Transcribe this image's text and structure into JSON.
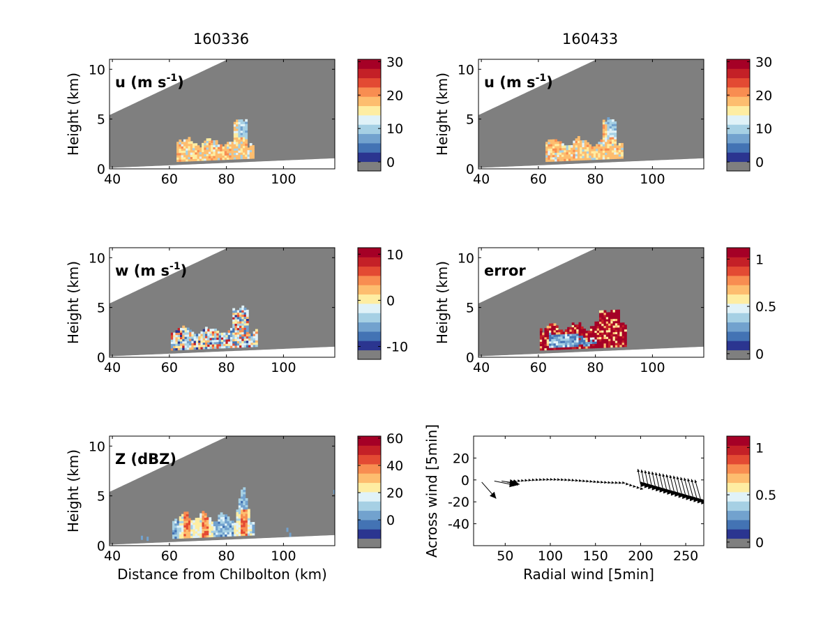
{
  "figure": {
    "col_titles": [
      "160336",
      "160433"
    ]
  },
  "colors": {
    "background_gray": "#7f7f7f",
    "palette": [
      "#2b3590",
      "#4373b4",
      "#72a2ce",
      "#a6d0e4",
      "#e0f2f8",
      "#feeda2",
      "#fdbd6f",
      "#f88d51",
      "#e34a33",
      "#c42027",
      "#a50026"
    ]
  },
  "chart_data": [
    {
      "type": "heatmap",
      "id": "u1",
      "label_parts": [
        "u (m s",
        "-1",
        ")"
      ],
      "ylabel": "Height (km)",
      "xlabel": "",
      "xlim": [
        39,
        118
      ],
      "ylim": [
        0,
        11
      ],
      "xticks": [
        40,
        60,
        80,
        100
      ],
      "yticks": [
        0,
        5,
        10
      ],
      "field": "u",
      "colorbar": {
        "ticks": [
          0,
          10,
          20,
          30
        ],
        "range": [
          -2.7,
          30.7
        ]
      }
    },
    {
      "type": "heatmap",
      "id": "u2",
      "label_parts": [
        "u (m s",
        "-1",
        ")"
      ],
      "ylabel": "Height (km)",
      "xlabel": "",
      "xlim": [
        39,
        118
      ],
      "ylim": [
        0,
        11
      ],
      "xticks": [
        40,
        60,
        80,
        100
      ],
      "yticks": [
        0,
        5,
        10
      ],
      "field": "u",
      "colorbar": {
        "ticks": [
          0,
          10,
          20,
          30
        ],
        "range": [
          -2.7,
          30.7
        ]
      }
    },
    {
      "type": "heatmap",
      "id": "w",
      "label_parts": [
        "w (m s",
        "-1",
        ")"
      ],
      "ylabel": "Height (km)",
      "xlabel": "",
      "xlim": [
        39,
        118
      ],
      "ylim": [
        0,
        11
      ],
      "xticks": [
        40,
        60,
        80,
        100
      ],
      "yticks": [
        0,
        5,
        10
      ],
      "field": "w",
      "colorbar": {
        "ticks": [
          -10,
          0,
          10
        ],
        "range": [
          -12.8,
          11.4
        ]
      }
    },
    {
      "type": "heatmap",
      "id": "err",
      "label_parts": [
        "error"
      ],
      "ylabel": "Height (km)",
      "xlabel": "",
      "xlim": [
        39,
        118
      ],
      "ylim": [
        0,
        11
      ],
      "xticks": [
        40,
        60,
        80,
        100
      ],
      "yticks": [
        0,
        5,
        10
      ],
      "field": "error",
      "colorbar": {
        "ticks": [
          0,
          0.5,
          1
        ],
        "range": [
          -0.06,
          1.12
        ]
      }
    },
    {
      "type": "heatmap",
      "id": "z",
      "label_parts": [
        "Z (dBZ)"
      ],
      "ylabel": "Height (km)",
      "xlabel": "Distance from Chilbolton (km)",
      "xlim": [
        39,
        118
      ],
      "ylim": [
        0,
        11
      ],
      "xticks": [
        40,
        60,
        80,
        100
      ],
      "yticks": [
        0,
        5,
        10
      ],
      "field": "Z",
      "colorbar": {
        "ticks": [
          0,
          20,
          40,
          60
        ],
        "range": [
          -20.5,
          61.5
        ]
      }
    },
    {
      "type": "quiver",
      "id": "quiver",
      "label_parts": [],
      "ylabel": "Across wind [5min]",
      "xlabel": "Radial wind [5min]",
      "xlim": [
        15,
        270
      ],
      "ylim": [
        -60,
        40
      ],
      "xticks": [
        50,
        100,
        150,
        200,
        250
      ],
      "yticks": [
        -40,
        -20,
        0,
        20
      ],
      "vectors": [
        {
          "x": 24,
          "y": -2,
          "u": 16,
          "v": -15
        },
        {
          "x": 38,
          "y": -1,
          "u": 24,
          "v": -4
        },
        {
          "x": 46,
          "y": -1,
          "u": 16,
          "v": -2
        },
        {
          "x": 52,
          "y": -2,
          "u": 14,
          "v": -2
        },
        {
          "x": 56,
          "y": -1,
          "u": 8,
          "v": -4
        }
      ],
      "colorbar": {
        "ticks": [
          0,
          0.5,
          1
        ],
        "range": [
          -0.06,
          1.12
        ]
      }
    }
  ]
}
